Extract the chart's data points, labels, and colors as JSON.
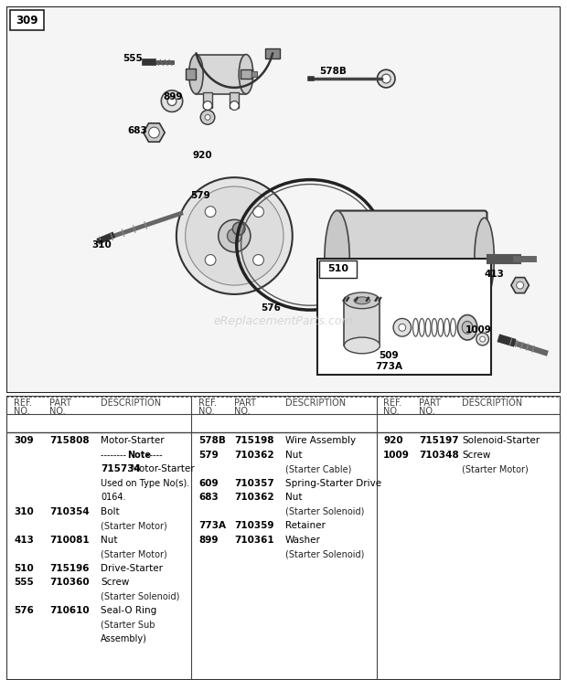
{
  "bg_color": "#ffffff",
  "diagram_bg": "#f2f2f2",
  "border_color": "#333333",
  "watermark": "eReplacementParts.com",
  "diagram_number": "309",
  "col1_rows": [
    [
      "309",
      "715808",
      "Motor-Starter"
    ],
    [
      "",
      "",
      "-------- Note -----"
    ],
    [
      "",
      "",
      "715734",
      "Motor-Starter"
    ],
    [
      "",
      "",
      "Used on Type No(s)."
    ],
    [
      "",
      "",
      "0164."
    ],
    [
      "310",
      "710354",
      "Bolt"
    ],
    [
      "",
      "",
      "(Starter Motor)"
    ],
    [
      "413",
      "710081",
      "Nut"
    ],
    [
      "",
      "",
      "(Starter Motor)"
    ],
    [
      "510",
      "715196",
      "Drive-Starter"
    ],
    [
      "555",
      "710360",
      "Screw"
    ],
    [
      "",
      "",
      "(Starter Solenoid)"
    ],
    [
      "576",
      "710610",
      "Seal-O Ring"
    ],
    [
      "",
      "",
      "(Starter Sub"
    ],
    [
      "",
      "",
      "Assembly)"
    ]
  ],
  "col2_rows": [
    [
      "578B",
      "715198",
      "Wire Assembly"
    ],
    [
      "579",
      "710362",
      "Nut"
    ],
    [
      "",
      "",
      "(Starter Cable)"
    ],
    [
      "609",
      "710357",
      "Spring-Starter Drive"
    ],
    [
      "683",
      "710362",
      "Nut"
    ],
    [
      "",
      "",
      "(Starter Solenoid)"
    ],
    [
      "773A",
      "710359",
      "Retainer"
    ],
    [
      "899",
      "710361",
      "Washer"
    ],
    [
      "",
      "",
      "(Starter Solenoid)"
    ]
  ],
  "col3_rows": [
    [
      "920",
      "715197",
      "Solenoid-Starter"
    ],
    [
      "1009",
      "710348",
      "Screw"
    ],
    [
      "",
      "",
      "(Starter Motor)"
    ]
  ]
}
